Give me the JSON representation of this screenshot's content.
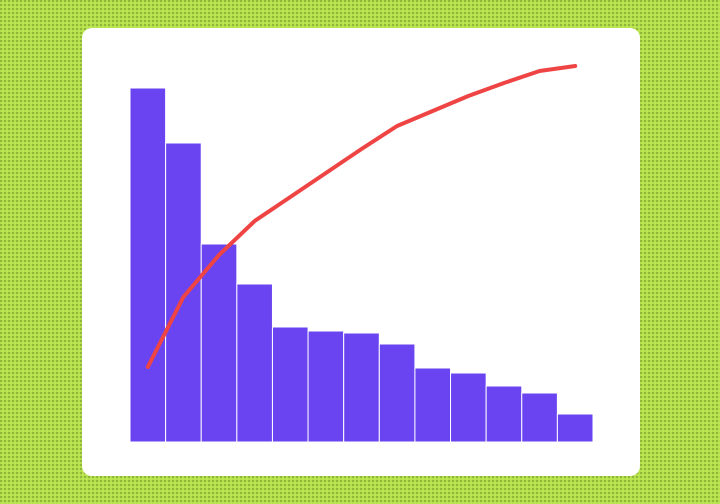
{
  "chart_data": {
    "type": "bar",
    "values": [
      354,
      299,
      198,
      158,
      115,
      111,
      109,
      98,
      74,
      69,
      56,
      49,
      28
    ],
    "color": "#6944f0",
    "line": {
      "values": [
        75,
        145,
        187,
        221,
        245,
        269,
        293,
        316,
        331,
        346,
        359,
        371,
        376
      ],
      "color": "#ef4444"
    },
    "ylim": [
      0,
      380
    ]
  }
}
